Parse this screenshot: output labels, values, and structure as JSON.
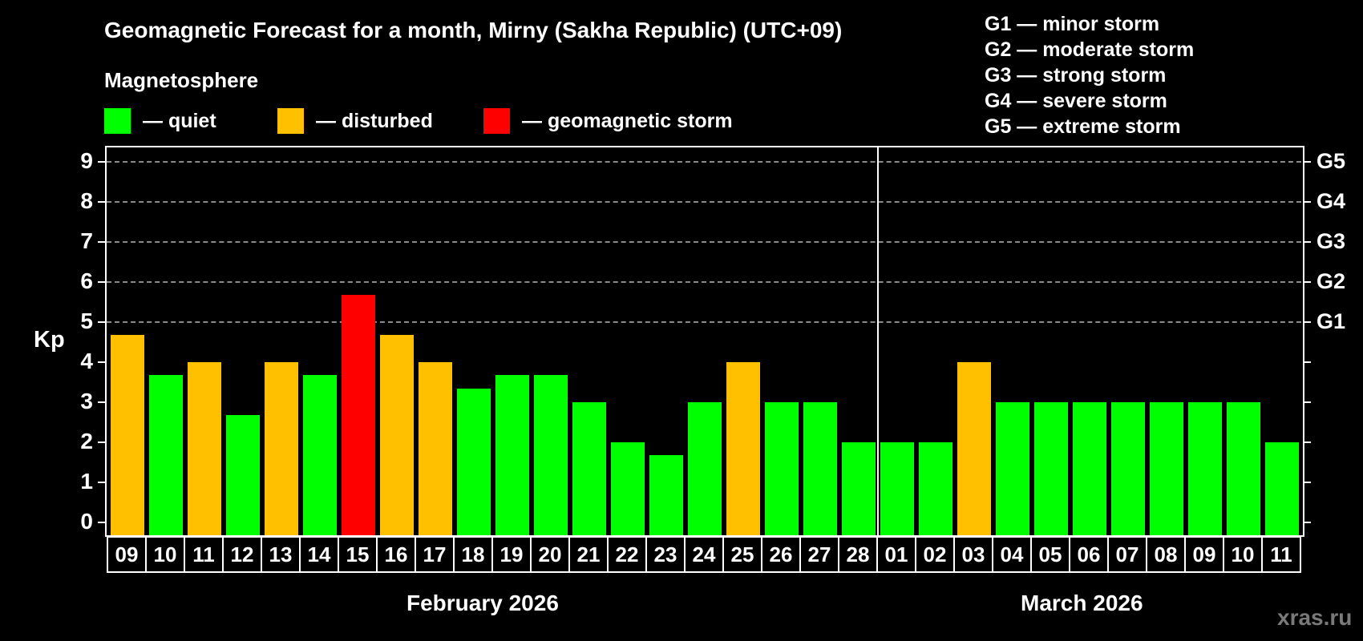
{
  "header": {
    "title": "Geomagnetic Forecast for a month, Mirny (Sakha Republic) (UTC+09)",
    "subtitle": "Magnetosphere"
  },
  "legend": {
    "items": [
      {
        "label": "— quiet",
        "color": "#00FF00"
      },
      {
        "label": "— disturbed",
        "color": "#FFC000"
      },
      {
        "label": "— geomagnetic storm",
        "color": "#FF0000"
      }
    ]
  },
  "storm_scale": {
    "items": [
      "G1 — minor storm",
      "G2 — moderate storm",
      "G3 — strong storm",
      "G4 — severe storm",
      "G5 — extreme storm"
    ]
  },
  "axis": {
    "ylabel": "Kp",
    "yticks": [
      "0",
      "1",
      "2",
      "3",
      "4",
      "5",
      "6",
      "7",
      "8",
      "9"
    ],
    "right_labels": [
      {
        "kp": 5,
        "label": "G1"
      },
      {
        "kp": 6,
        "label": "G2"
      },
      {
        "kp": 7,
        "label": "G3"
      },
      {
        "kp": 8,
        "label": "G4"
      },
      {
        "kp": 9,
        "label": "G5"
      }
    ]
  },
  "months": [
    {
      "label": "February 2026"
    },
    {
      "label": "March 2026"
    }
  ],
  "watermark": "xras.ru",
  "colors": {
    "quiet": "#00FF00",
    "disturbed": "#FFC000",
    "storm": "#FF0000",
    "background": "#000000",
    "grid": "#8A8A8A"
  },
  "chart_data": {
    "type": "bar",
    "title": "Geomagnetic Forecast for a month, Mirny (Sakha Republic) (UTC+09)",
    "xlabel": "",
    "ylabel": "Kp",
    "ylim": [
      0,
      9
    ],
    "grid": true,
    "legend_position": "top",
    "categories": [
      "09",
      "10",
      "11",
      "12",
      "13",
      "14",
      "15",
      "16",
      "17",
      "18",
      "19",
      "20",
      "21",
      "22",
      "23",
      "24",
      "25",
      "26",
      "27",
      "28",
      "01",
      "02",
      "03",
      "04",
      "05",
      "06",
      "07",
      "08",
      "09",
      "10",
      "11"
    ],
    "month_groups": [
      {
        "label": "February 2026",
        "start": 0,
        "end": 19
      },
      {
        "label": "March 2026",
        "start": 20,
        "end": 30
      }
    ],
    "values": [
      4.67,
      3.67,
      4.0,
      2.67,
      4.0,
      3.67,
      5.67,
      4.67,
      4.0,
      3.33,
      3.67,
      3.67,
      3.0,
      2.0,
      1.67,
      3.0,
      4.0,
      3.0,
      3.0,
      2.0,
      2.0,
      2.0,
      4.0,
      3.0,
      3.0,
      3.0,
      3.0,
      3.0,
      3.0,
      3.0,
      2.0
    ],
    "status": [
      "disturbed",
      "quiet",
      "disturbed",
      "quiet",
      "disturbed",
      "quiet",
      "storm",
      "disturbed",
      "disturbed",
      "quiet",
      "quiet",
      "quiet",
      "quiet",
      "quiet",
      "quiet",
      "quiet",
      "disturbed",
      "quiet",
      "quiet",
      "quiet",
      "quiet",
      "quiet",
      "disturbed",
      "quiet",
      "quiet",
      "quiet",
      "quiet",
      "quiet",
      "quiet",
      "quiet",
      "quiet"
    ],
    "right_axis": {
      "5": "G1",
      "6": "G2",
      "7": "G3",
      "8": "G4",
      "9": "G5"
    }
  }
}
